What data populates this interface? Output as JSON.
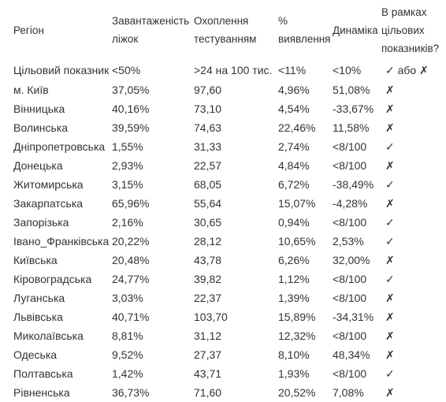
{
  "table": {
    "headers": [
      "Регіон",
      "Завантаженість ліжок",
      "Охоплення тестуванням",
      "% виявлення",
      "Динаміка",
      "В рамках цільових показників?"
    ],
    "target_row": [
      "Цільовий показник",
      "<50%",
      ">24 на 100 тис.",
      "<11%",
      "<10%",
      "✓ або ✗"
    ],
    "rows": [
      [
        "м. Київ",
        "37,05%",
        "97,60",
        "4,96%",
        "51,08%",
        "✗"
      ],
      [
        "Вінницька",
        "40,16%",
        "73,10",
        "4,54%",
        "-33,67%",
        "✗"
      ],
      [
        "Волинська",
        "39,59%",
        "74,63",
        "22,46%",
        "11,58%",
        "✗"
      ],
      [
        "Дніпропетровська",
        "1,55%",
        "31,33",
        "2,74%",
        "<8/100",
        "✓"
      ],
      [
        "Донецька",
        "2,93%",
        "22,57",
        "4,84%",
        "<8/100",
        "✗"
      ],
      [
        "Житомирська",
        "3,15%",
        "68,05",
        "6,72%",
        "-38,49%",
        "✓"
      ],
      [
        "Закарпатська",
        "65,96%",
        "55,64",
        "15,07%",
        "-4,28%",
        "✗"
      ],
      [
        "Запорізька",
        "2,16%",
        "30,65",
        "0,94%",
        "<8/100",
        "✓"
      ],
      [
        "Івано_Франківська",
        "20,22%",
        "28,12",
        "10,65%",
        "2,53%",
        "✓"
      ],
      [
        "Київська",
        "20,48%",
        "43,78",
        "6,26%",
        "32,00%",
        "✗"
      ],
      [
        "Кіровоградська",
        "24,77%",
        "39,82",
        "1,12%",
        "<8/100",
        "✓"
      ],
      [
        "Луганська",
        "3,03%",
        "22,37",
        "1,39%",
        "<8/100",
        "✗"
      ],
      [
        "Львівська",
        "40,71%",
        "103,70",
        "15,89%",
        "-34,31%",
        "✗"
      ],
      [
        "Миколаївська",
        "8,81%",
        "31,12",
        "12,32%",
        "<8/100",
        "✗"
      ],
      [
        "Одеська",
        "9,52%",
        "27,37",
        "8,10%",
        "48,34%",
        "✗"
      ],
      [
        "Полтавська",
        "1,42%",
        "43,71",
        "1,93%",
        "<8/100",
        "✓"
      ],
      [
        "Рівненська",
        "36,73%",
        "71,60",
        "20,52%",
        "7,08%",
        "✗"
      ]
    ]
  }
}
